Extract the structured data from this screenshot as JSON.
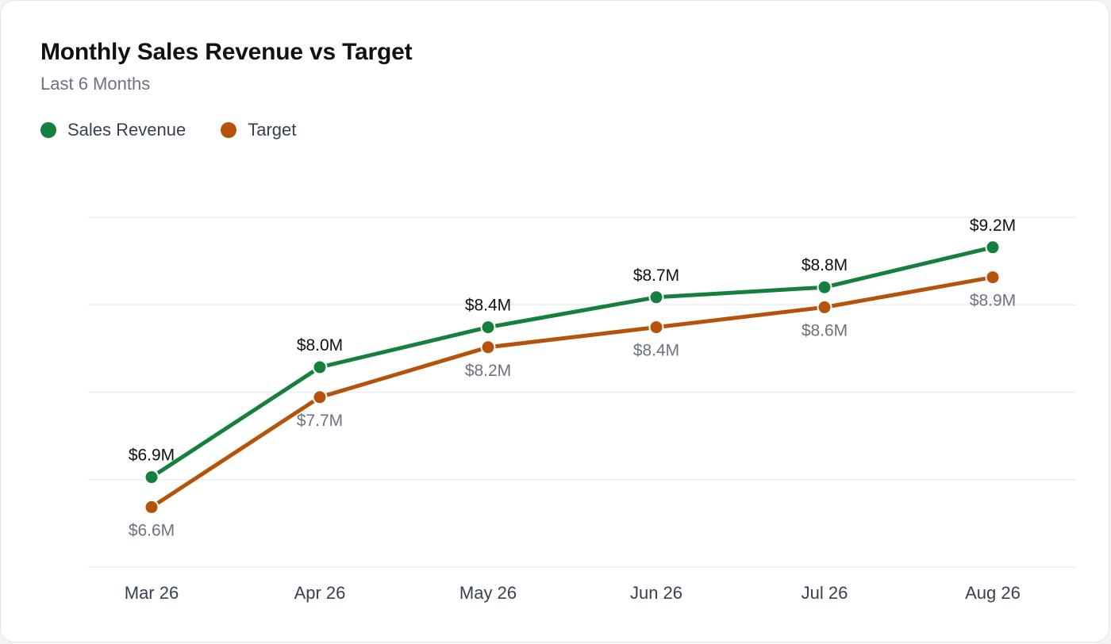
{
  "chart_data": {
    "type": "line",
    "title": "Monthly Sales Revenue vs Target",
    "subtitle": "Last 6 Months",
    "categories": [
      "Mar 26",
      "Apr 26",
      "May 26",
      "Jun 26",
      "Jul 26",
      "Aug 26"
    ],
    "series": [
      {
        "name": "Sales Revenue",
        "color": "#15803d",
        "values": [
          6.9,
          8.0,
          8.4,
          8.7,
          8.8,
          9.2
        ],
        "labels": [
          "$6.9M",
          "$8.0M",
          "$8.4M",
          "$8.7M",
          "$8.8M",
          "$9.2M"
        ]
      },
      {
        "name": "Target",
        "color": "#b45309",
        "values": [
          6.6,
          7.7,
          8.2,
          8.4,
          8.6,
          8.9
        ],
        "labels": [
          "$6.6M",
          "$7.7M",
          "$8.2M",
          "$8.4M",
          "$8.6M",
          "$8.9M"
        ]
      }
    ],
    "ylim": [
      6.0,
      9.5
    ],
    "grid": true,
    "legend": "top-left"
  }
}
